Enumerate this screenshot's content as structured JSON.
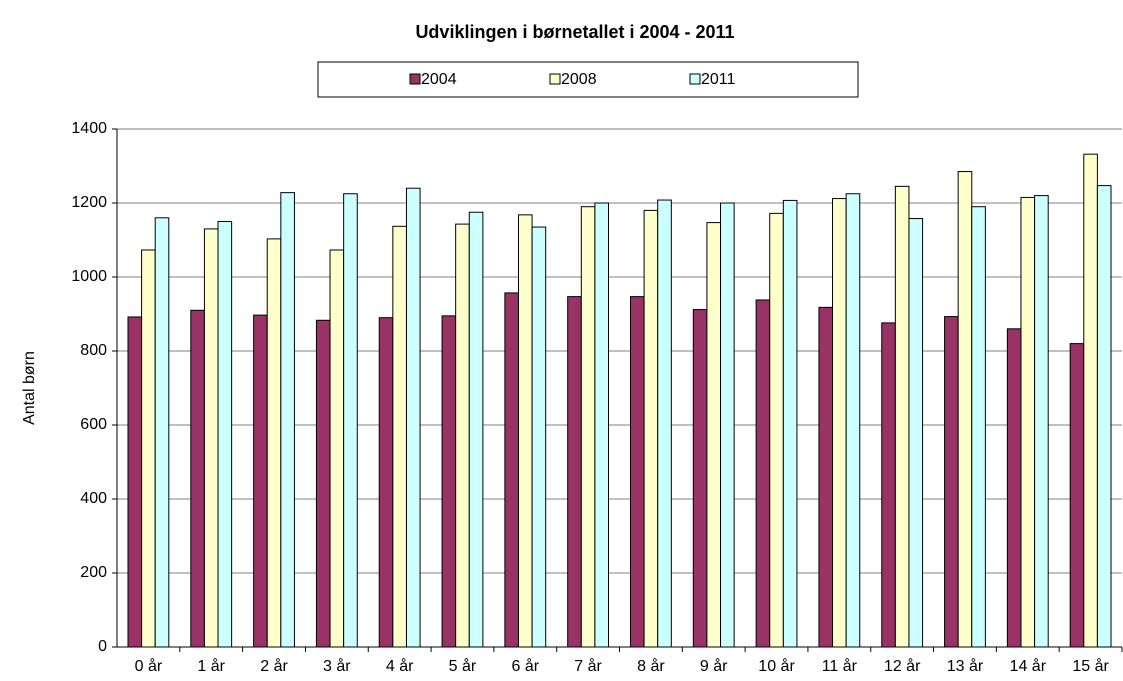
{
  "chart_data": {
    "type": "bar",
    "title": "Udviklingen i børnetallet i 2004 - 2011",
    "y_label": "Antal børn",
    "categories": [
      "0 år",
      "1 år",
      "2 år",
      "3 år",
      "4 år",
      "5 år",
      "6 år",
      "7 år",
      "8 år",
      "9 år",
      "10 år",
      "11 år",
      "12 år",
      "13 år",
      "14 år",
      "15 år"
    ],
    "series": [
      {
        "name": "2004",
        "color": "#993366",
        "values": [
          892,
          910,
          897,
          883,
          890,
          895,
          957,
          947,
          947,
          912,
          938,
          918,
          876,
          893,
          860,
          820
        ]
      },
      {
        "name": "2008",
        "color": "#ffffcc",
        "values": [
          1073,
          1130,
          1103,
          1073,
          1137,
          1143,
          1168,
          1190,
          1180,
          1147,
          1172,
          1212,
          1245,
          1285,
          1215,
          1332
        ]
      },
      {
        "name": "2011",
        "color": "#ccffff",
        "values": [
          1160,
          1150,
          1228,
          1225,
          1240,
          1175,
          1135,
          1200,
          1208,
          1200,
          1207,
          1225,
          1158,
          1190,
          1220,
          1247
        ]
      }
    ],
    "ylim": [
      0,
      1400
    ],
    "yticks": [
      0,
      200,
      400,
      600,
      800,
      1000,
      1200,
      1400
    ],
    "grid": true,
    "legend": "top"
  }
}
